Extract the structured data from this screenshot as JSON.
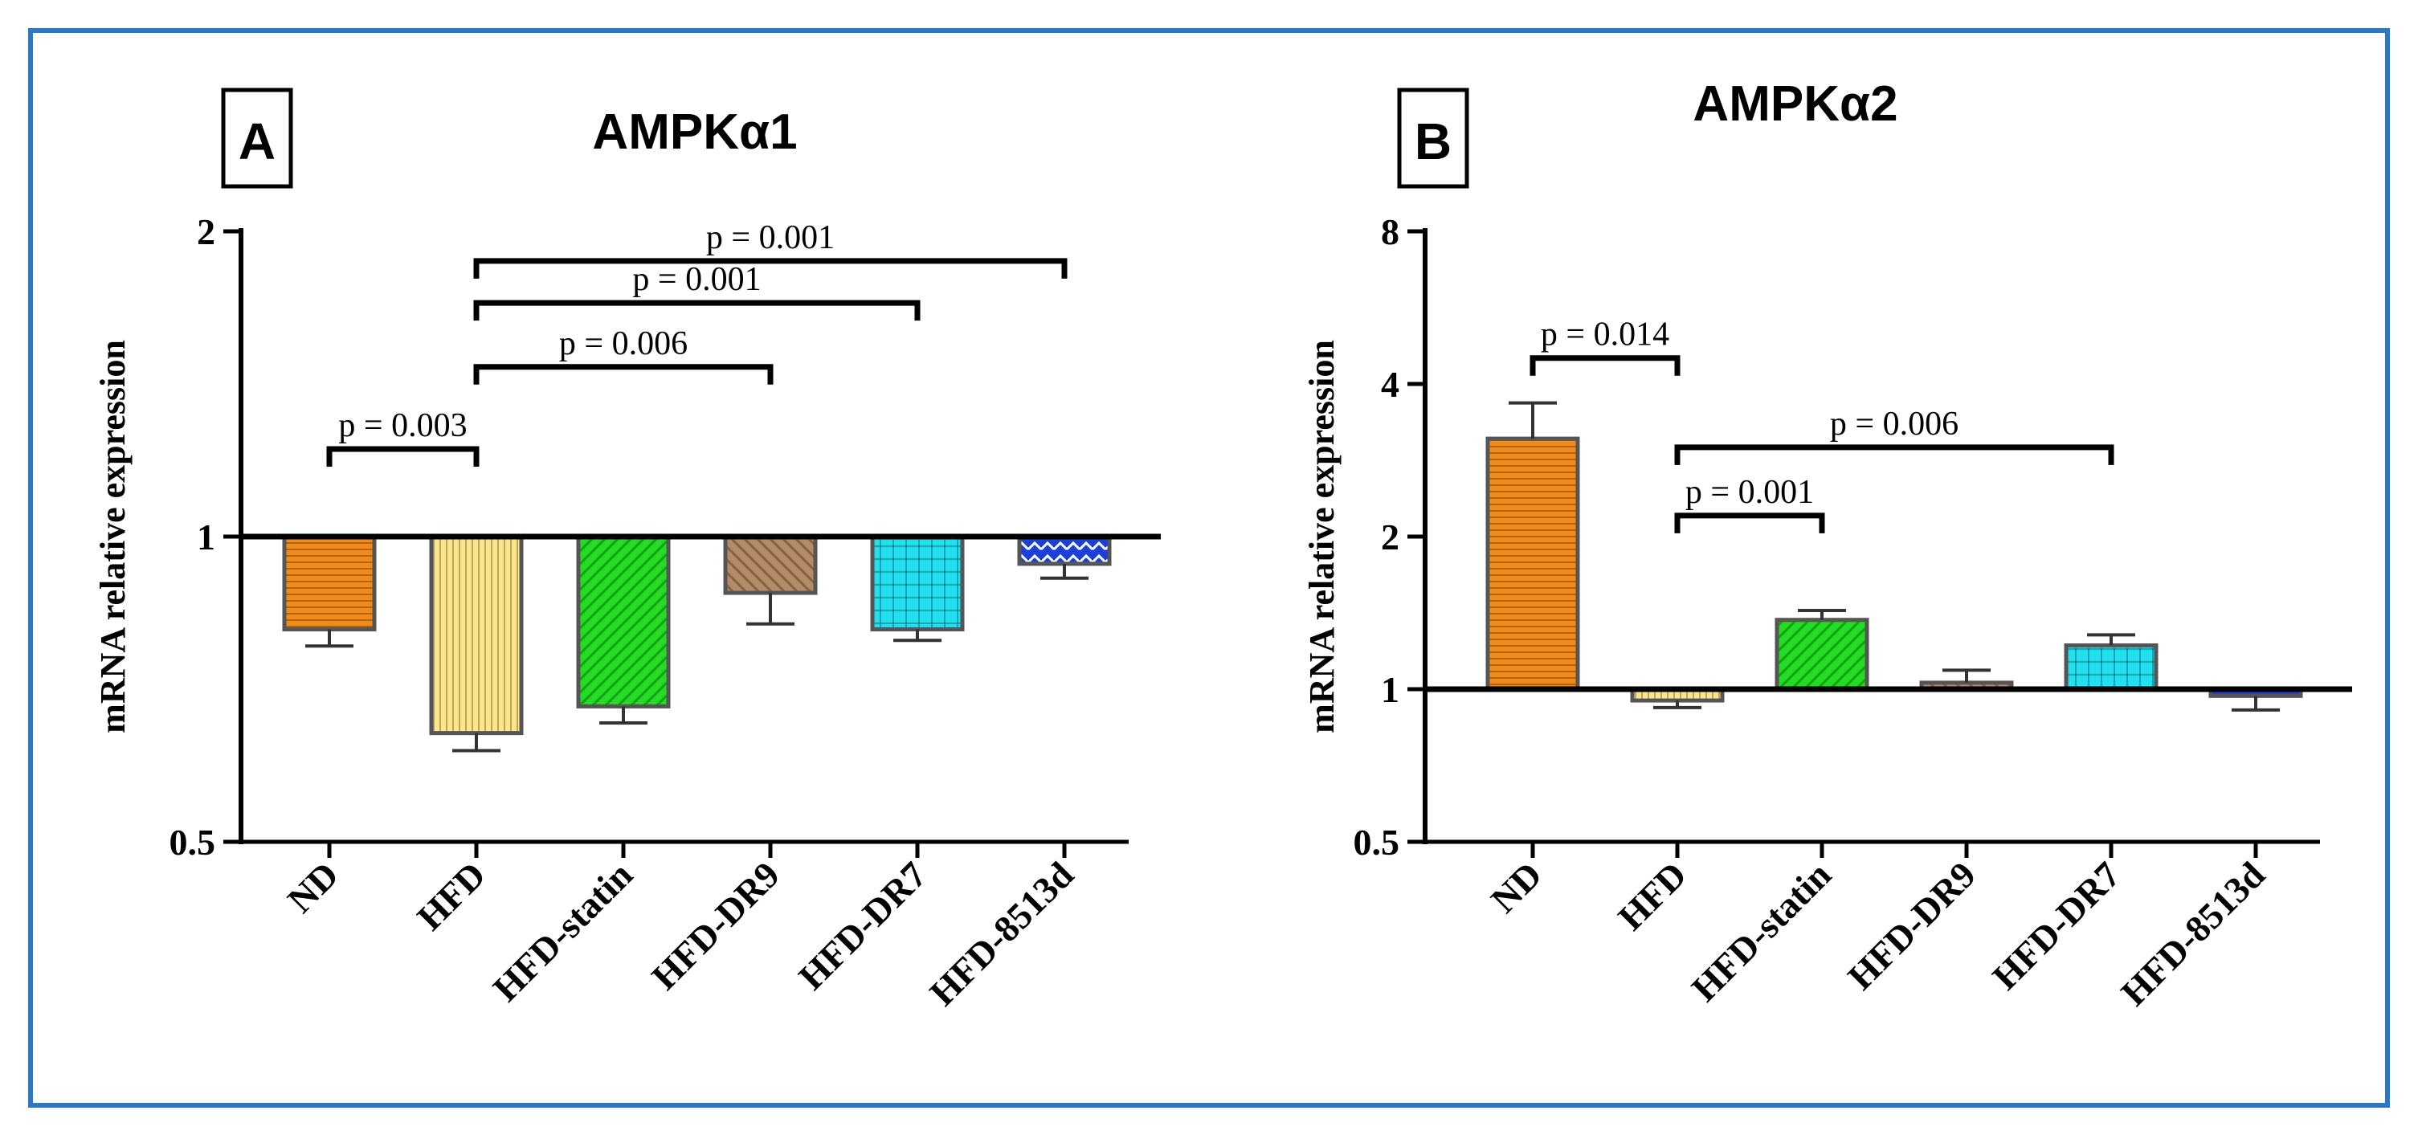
{
  "colors": {
    "frame": "#2b78c8",
    "axis": "#000000",
    "bar_outline": "#555555"
  },
  "chart_data": [
    {
      "type": "bar",
      "panel": "A",
      "title": "AMPKα1",
      "ylabel": "mRNA relative expression",
      "xlabel": "",
      "yscale": "log2",
      "ylim": [
        0.5,
        2
      ],
      "baseline": 1,
      "yticks": [
        {
          "value": 0.5,
          "label": "0.5"
        },
        {
          "value": 1,
          "label": "1"
        },
        {
          "value": 2,
          "label": "2"
        }
      ],
      "categories": [
        "ND",
        "HFD",
        "HFD-statin",
        "HFD-DR9",
        "HFD-DR7",
        "HFD-8513d"
      ],
      "values": [
        0.81,
        0.64,
        0.68,
        0.88,
        0.81,
        0.94
      ],
      "errors": [
        0.03,
        0.025,
        0.025,
        0.06,
        0.02,
        0.03
      ],
      "fills": [
        {
          "color": "#f28a1a",
          "pattern": "hlines"
        },
        {
          "color": "#fde58a",
          "pattern": "vlines"
        },
        {
          "color": "#22dd22",
          "pattern": "diag"
        },
        {
          "color": "#b58a66",
          "pattern": "diagback"
        },
        {
          "color": "#20e0f0",
          "pattern": "grid"
        },
        {
          "color": "#1c3fd8",
          "pattern": "chevron"
        }
      ],
      "comparisons": [
        {
          "from": 0,
          "to": 1,
          "label": "p = 0.003",
          "y": 1.22
        },
        {
          "from": 1,
          "to": 3,
          "label": "p = 0.006",
          "y": 1.47
        },
        {
          "from": 1,
          "to": 4,
          "label": "p = 0.001",
          "y": 1.7
        },
        {
          "from": 1,
          "to": 5,
          "label": "p = 0.001",
          "y": 1.87
        }
      ]
    },
    {
      "type": "bar",
      "panel": "B",
      "title": "AMPKα2",
      "ylabel": "mRNA relative expression",
      "xlabel": "",
      "yscale": "log2",
      "ylim": [
        0.5,
        8
      ],
      "baseline": 1,
      "yticks": [
        {
          "value": 0.5,
          "label": "0.5"
        },
        {
          "value": 1,
          "label": "1"
        },
        {
          "value": 2,
          "label": "2"
        },
        {
          "value": 4,
          "label": "4"
        },
        {
          "value": 8,
          "label": "8"
        }
      ],
      "categories": [
        "ND",
        "HFD",
        "HFD-statin",
        "HFD-DR9",
        "HFD-DR7",
        "HFD-8513d"
      ],
      "values": [
        3.12,
        0.95,
        1.37,
        1.03,
        1.22,
        0.97
      ],
      "errors": [
        0.55,
        0.03,
        0.06,
        0.06,
        0.06,
        0.06
      ],
      "fills": [
        {
          "color": "#f28a1a",
          "pattern": "hlines"
        },
        {
          "color": "#fde58a",
          "pattern": "vlines"
        },
        {
          "color": "#22dd22",
          "pattern": "diag"
        },
        {
          "color": "#b58a66",
          "pattern": "diagback"
        },
        {
          "color": "#20e0f0",
          "pattern": "grid"
        },
        {
          "color": "#1c3fd8",
          "pattern": "chevron"
        }
      ],
      "comparisons": [
        {
          "from": 0,
          "to": 1,
          "label": "p = 0.014",
          "y": 4.5
        },
        {
          "from": 1,
          "to": 2,
          "label": "p = 0.001",
          "y": 2.2
        },
        {
          "from": 1,
          "to": 4,
          "label": "p = 0.006",
          "y": 3.0
        }
      ]
    }
  ]
}
